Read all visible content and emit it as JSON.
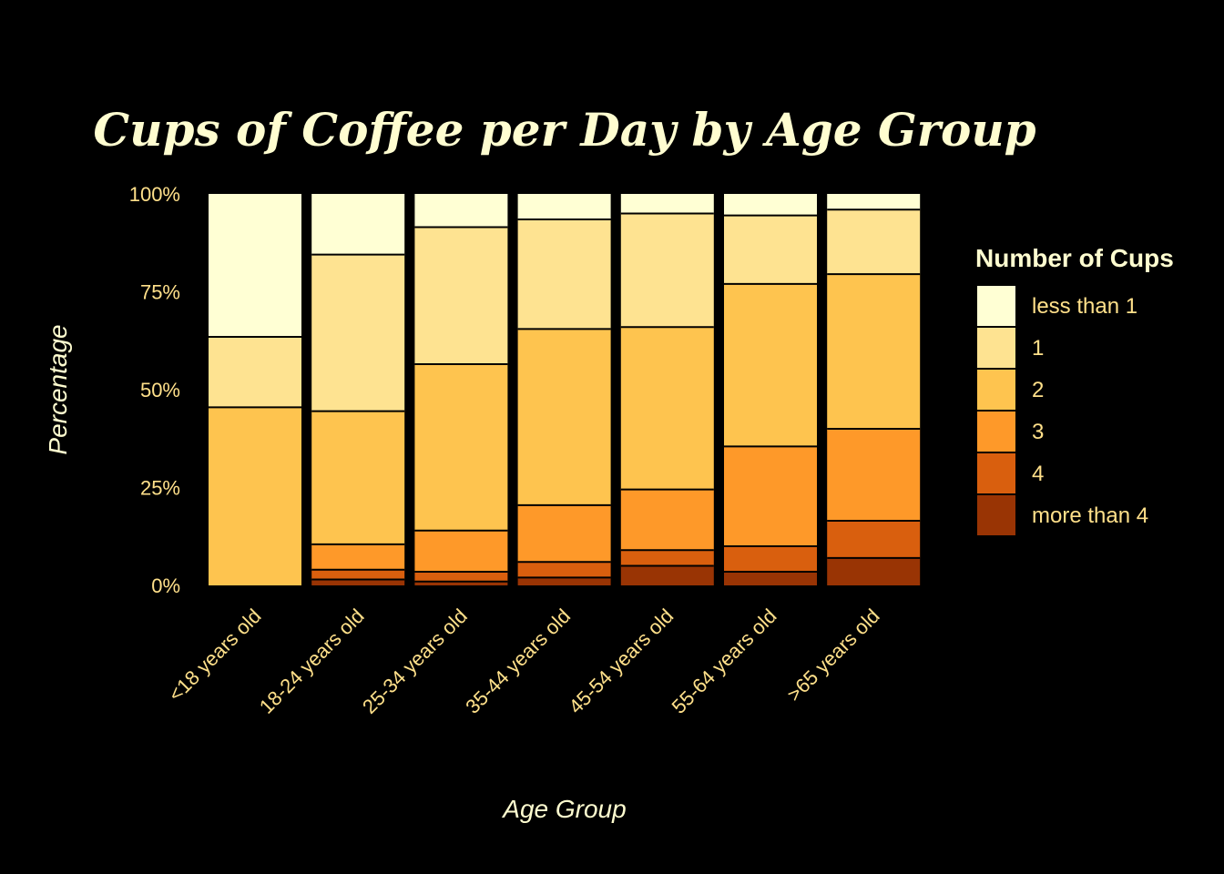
{
  "chart_data": {
    "type": "bar",
    "stacked": true,
    "normalized": true,
    "title": "Cups of Coffee per Day by Age Group",
    "xlabel": "Age Group",
    "ylabel": "Percentage",
    "ylim": [
      0,
      100
    ],
    "yticks": [
      "0%",
      "25%",
      "50%",
      "75%",
      "100%"
    ],
    "ytick_values": [
      0,
      25,
      50,
      75,
      100
    ],
    "grid": false,
    "legend": {
      "title": "Number of Cups",
      "placement": "right"
    },
    "categories": [
      "<18 years old",
      "18-24 years old",
      "25-34 years old",
      "35-44 years old",
      "45-54 years old",
      "55-64 years old",
      ">65 years old"
    ],
    "series": [
      {
        "name": "more than 4",
        "color": "#993404",
        "values": [
          0,
          1.5,
          1.0,
          2.0,
          5.0,
          3.5,
          7.0
        ]
      },
      {
        "name": "4",
        "color": "#D95F0E",
        "values": [
          0,
          2.5,
          2.5,
          4.0,
          4.0,
          6.5,
          9.5
        ]
      },
      {
        "name": "3",
        "color": "#FE9929",
        "values": [
          0,
          6.5,
          10.5,
          14.5,
          15.5,
          25.5,
          23.5
        ]
      },
      {
        "name": "2",
        "color": "#FEC44F",
        "values": [
          45.5,
          34.0,
          42.5,
          45.0,
          41.5,
          41.5,
          39.5
        ]
      },
      {
        "name": "1",
        "color": "#FEE391",
        "values": [
          18.0,
          40.0,
          35.0,
          28.0,
          29.0,
          17.5,
          16.5
        ]
      },
      {
        "name": "less than 1",
        "color": "#FFFFD4",
        "values": [
          36.5,
          15.5,
          8.5,
          6.5,
          5.0,
          5.5,
          4.0
        ]
      }
    ],
    "legend_order": [
      "less than 1",
      "1",
      "2",
      "3",
      "4",
      "more than 4"
    ]
  }
}
